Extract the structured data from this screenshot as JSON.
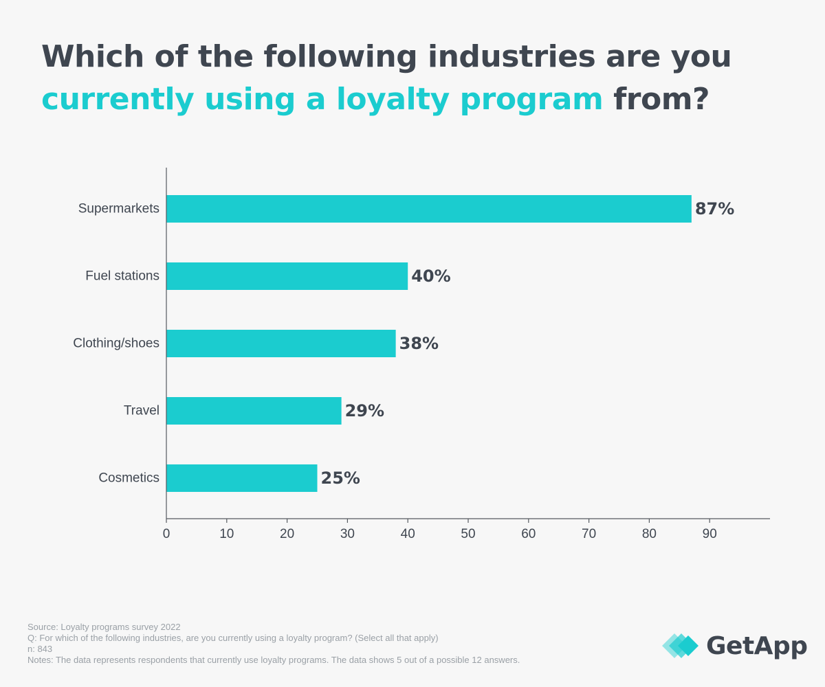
{
  "title": {
    "line1": "Which of the following industries are you",
    "line2_accent": "currently using  a loyalty program",
    "line2_rest": "from?"
  },
  "colors": {
    "accent": "#1bcccf",
    "text": "#3f4650",
    "muted": "#9aa0a6",
    "background": "#f7f7f7"
  },
  "chart_data": {
    "type": "bar",
    "orientation": "horizontal",
    "categories": [
      "Supermarkets",
      "Fuel stations",
      "Clothing/shoes",
      "Travel",
      "Cosmetics"
    ],
    "values": [
      87,
      40,
      38,
      29,
      25
    ],
    "value_labels": [
      "87%",
      "40%",
      "38%",
      "29%",
      "25%"
    ],
    "xticks": [
      0,
      10,
      20,
      30,
      40,
      50,
      60,
      70,
      80,
      90
    ],
    "xlim": [
      0,
      100
    ],
    "title": "Which of the following industries are you currently using  a loyalty program from?",
    "xlabel": "",
    "ylabel": "",
    "grid": false
  },
  "footer": {
    "source": "Source: Loyalty programs survey 2022",
    "question": "Q: For which of the following industries, are you currently using a loyalty program? (Select all that apply)",
    "n": "n: 843",
    "notes": "Notes: The data represents respondents that currently use loyalty programs. The data shows 5 out of a possible 12 answers."
  },
  "logo": {
    "text": "GetApp",
    "icon": "getapp-logo-icon"
  }
}
